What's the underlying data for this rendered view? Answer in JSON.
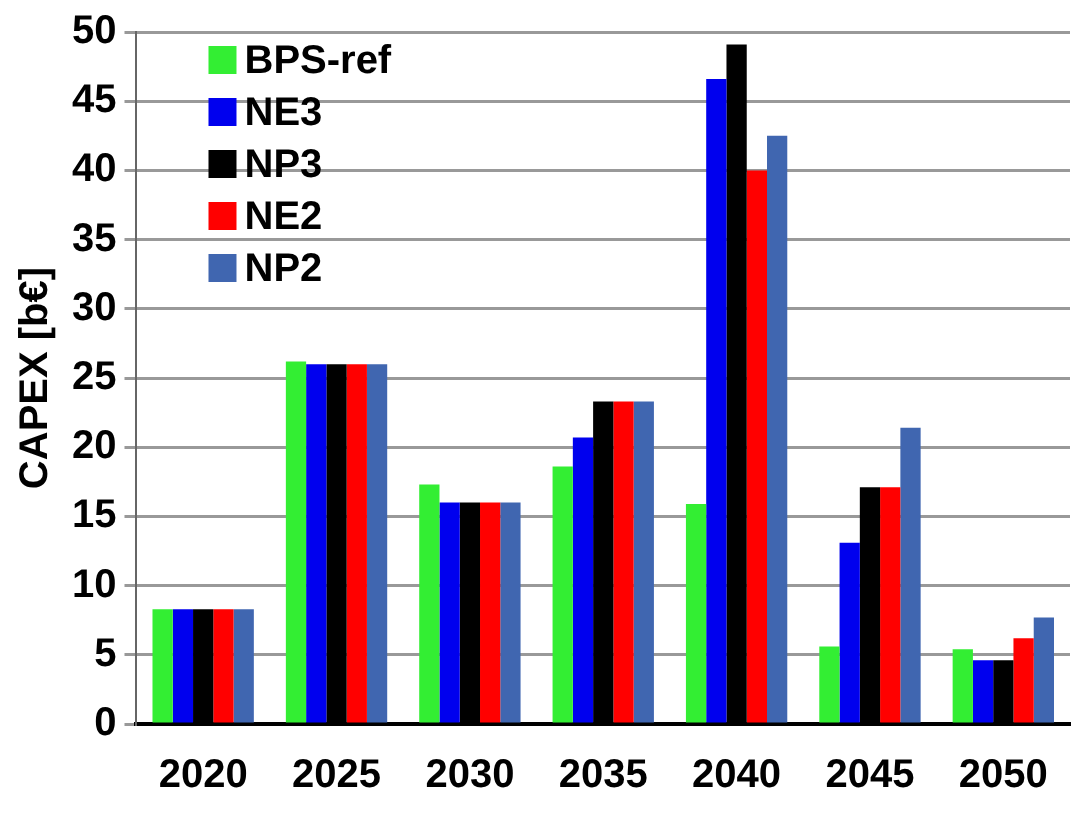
{
  "chart_data": {
    "type": "bar",
    "ylabel": "CAPEX [b€]",
    "categories": [
      "2020",
      "2025",
      "2030",
      "2035",
      "2040",
      "2045",
      "2050"
    ],
    "series": [
      {
        "name": "BPS-ref",
        "color": "#33ee33",
        "values": [
          8.3,
          26.2,
          17.3,
          18.6,
          15.9,
          5.6,
          5.4
        ]
      },
      {
        "name": "NE3",
        "color": "#0000ee",
        "values": [
          8.3,
          26.0,
          16.0,
          20.7,
          46.6,
          13.1,
          4.6
        ]
      },
      {
        "name": "NP3",
        "color": "#000000",
        "values": [
          8.3,
          26.0,
          16.0,
          23.3,
          49.1,
          17.1,
          4.6
        ]
      },
      {
        "name": "NE2",
        "color": "#ff0000",
        "values": [
          8.3,
          26.0,
          16.0,
          23.3,
          40.0,
          17.1,
          6.2
        ]
      },
      {
        "name": "NP2",
        "color": "#4066b0",
        "values": [
          8.3,
          26.0,
          16.0,
          23.3,
          42.5,
          21.4,
          7.7
        ]
      }
    ],
    "ylim": [
      0,
      50
    ],
    "yticks": [
      0,
      5,
      10,
      15,
      20,
      25,
      30,
      35,
      40,
      45,
      50
    ],
    "grid": "y",
    "legend": "top left"
  }
}
